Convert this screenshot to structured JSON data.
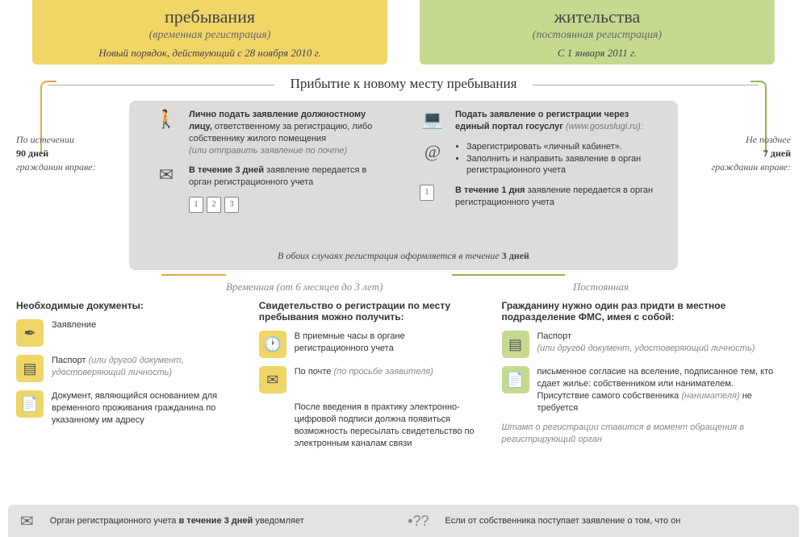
{
  "colors": {
    "yellow_bg": "#f0d567",
    "green_bg": "#c5da8f",
    "gray_bg": "#dcdcdc",
    "orange_line": "#e8a840",
    "green_line": "#8fb54a",
    "text_dark": "#333333",
    "text_muted": "#888888"
  },
  "headers": {
    "left": {
      "title": "пребывания",
      "subtitle": "(временная регистрация)",
      "date": "Новый порядок, действующий с 28 ноября 2010 г."
    },
    "right": {
      "title": "жительства",
      "subtitle": "(постоянная регистрация)",
      "date": "С 1 января 2011 г."
    }
  },
  "section_title": "Прибытие к новому месту пребывания",
  "side_notes": {
    "left": {
      "pre": "По истечении",
      "days": "90 дней",
      "post": "гражданин вправе:"
    },
    "right": {
      "pre": "Не позднее",
      "days": "7 дней",
      "post": "гражданин вправе:"
    }
  },
  "flow": {
    "left": {
      "step1_title": "Лично подать заявление должностному лицу,",
      "step1_body": "ответственному за регистрацию, либо собственнику жилого помещения",
      "step1_note": "(или отправить заявление по почте)",
      "step2_pre": "В течение 3 дней",
      "step2_post": " заявление передается в орган регистрационного учета",
      "cal": [
        "1",
        "2",
        "3"
      ]
    },
    "right": {
      "step1_title": "Подать заявление о регистрации через единый портал госуслуг",
      "step1_url": "(www.gosuslugi.ru):",
      "bul1": "Зарегистрировать «личный кабинет».",
      "bul2": "Заполнить и направить заявление в орган регистрационного учета",
      "step2_pre": "В течение 1 дня",
      "step2_post": " заявление передается в орган регистрационного учета",
      "cal": "1"
    },
    "both": "В обоих случаях регистрация оформляется в течение ",
    "both_em": "3 дней"
  },
  "branches": {
    "left_label": "Временная (от 6 месяцев до 3 лет)",
    "right_label": "Постоянная"
  },
  "cols": {
    "docs": {
      "title": "Необходимые документы:",
      "i1": "Заявление",
      "i2": "Паспорт ",
      "i2_note": "(или другой документ, удостоверяющий личность)",
      "i3": "Документ, являющийся основанием для временного проживания гражданина по указанному им адресу"
    },
    "receive": {
      "title": "Свидетельство о регистрации по месту пребывания можно получить:",
      "i1": "В приемные часы в органе регистрационного учета",
      "i2": "По почте ",
      "i2_note": "(по просьбе заявителя)",
      "i3": "После введения в практику электронно-цифровой подписи должна появиться возможность пересылать свидетельство по электронным каналам связи"
    },
    "perm": {
      "title": "Гражданину нужно один раз придти в местное подразделение ФМС, имея с собой:",
      "i1": "Паспорт",
      "i1_note": "(или другой документ, удостоверяющий личность)",
      "i2": "письменное согласие на вселение, подписанное тем, кто сдает жилье: собственником или нанимателем.",
      "i2b": "Присутствие самого собственника ",
      "i2b_note": "(нанимателя)",
      "i2b_post": " не требуется",
      "stamp": "Штамп о регистрации ставится в момент обращения в регистрирующий орган"
    }
  },
  "footer": {
    "left_pre": "Орган регистрационного учета ",
    "left_em": "в течение 3 дней",
    "left_post": " уведомляет",
    "right": "Если от собственника поступает заявление о том, что он"
  }
}
